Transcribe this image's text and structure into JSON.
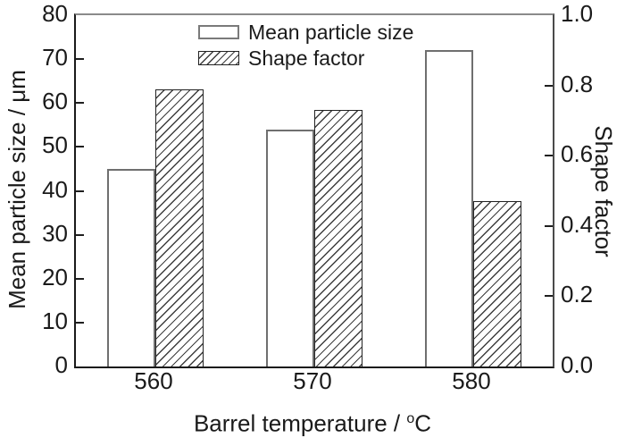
{
  "chart_data": {
    "type": "bar",
    "dual_axis": true,
    "categories": [
      "560",
      "570",
      "580"
    ],
    "series": [
      {
        "name": "Mean particle size",
        "axis": "left",
        "fill": "open",
        "values": [
          45,
          54,
          72
        ]
      },
      {
        "name": "Shape factor",
        "axis": "right",
        "fill": "hatched",
        "values": [
          0.79,
          0.73,
          0.47
        ]
      }
    ],
    "xlabel": {
      "text": "Barrel temperature / ",
      "sup": "o",
      "unit": "C"
    },
    "ylabel_left": "Mean particle size / μm",
    "ylabel_right": "Shape factor",
    "ylim_left": [
      0,
      80
    ],
    "ylim_right": [
      0.0,
      1.0
    ],
    "yticks_left": [
      "0",
      "10",
      "20",
      "30",
      "40",
      "50",
      "60",
      "70",
      "80"
    ],
    "yticks_right": [
      "0.0",
      "0.2",
      "0.4",
      "0.6",
      "0.8",
      "1.0"
    ],
    "grid": false,
    "legend_position": "top-center-inside",
    "colors": {
      "bar_outline_open": "#6f6f6f",
      "bar_outline_hatched": "#222222",
      "hatch_line": "#3d3d3d",
      "axis_box": "#1a1a1a",
      "text": "#1a1a1a"
    }
  }
}
